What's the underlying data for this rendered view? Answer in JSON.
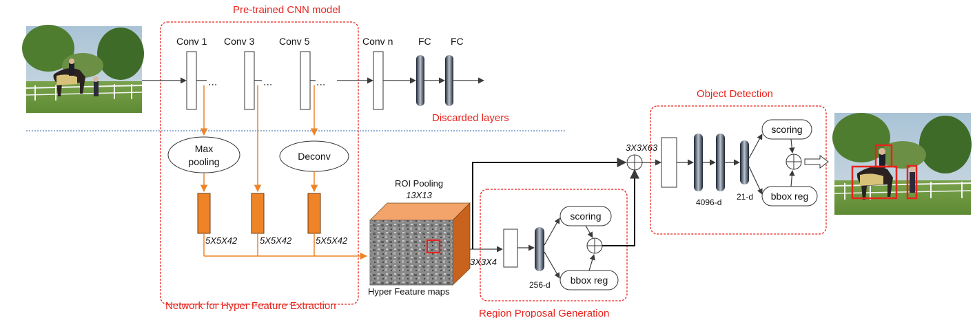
{
  "sections": {
    "pretrained_title": "Pre-trained CNN model",
    "hyper_feature_title": "Network for Hyper Feature Extraction",
    "region_proposal_title": "Region Proposal Generation",
    "object_detection_title": "Object Detection",
    "discarded": "Discarded layers"
  },
  "cnn": {
    "conv1": "Conv 1",
    "conv3": "Conv 3",
    "conv5": "Conv 5",
    "convn": "Conv n",
    "fc1": "FC",
    "fc2": "FC",
    "dots": "..."
  },
  "ops": {
    "maxpool_line1": "Max",
    "maxpool_line2": "pooling",
    "deconv": "Deconv"
  },
  "features": {
    "dim1": "5X5X42",
    "dim2": "5X5X42",
    "dim3": "5X5X42",
    "roi_title": "ROI Pooling",
    "roi_size": "13X13",
    "hyper_maps": "Hyper Feature maps"
  },
  "rpn": {
    "input_dim": "3X3X4",
    "fc_dim": "256-d",
    "scoring": "scoring",
    "bbox": "bbox reg"
  },
  "det": {
    "input_dim": "3X3X63",
    "fc_dim": "4096-d",
    "fc2_dim": "21-d",
    "scoring": "scoring",
    "bbox": "bbox reg"
  },
  "colors": {
    "accent_red": "#e8231c",
    "orange": "#ee8427",
    "cube_top": "#f2a46a",
    "cube_side": "#c9621c"
  }
}
